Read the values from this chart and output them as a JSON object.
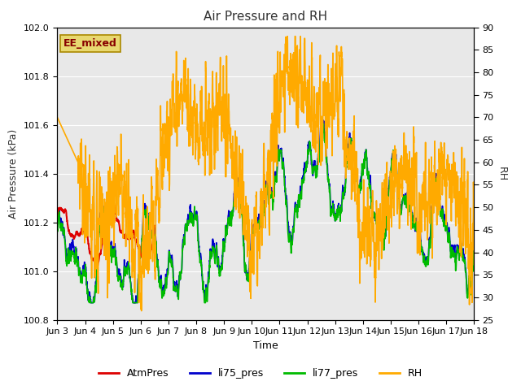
{
  "title": "Air Pressure and RH",
  "xlabel": "Time",
  "ylabel_left": "Air Pressure (kPa)",
  "ylabel_right": "RH",
  "annotation": "EE_mixed",
  "ylim_left": [
    100.8,
    102.0
  ],
  "ylim_right": [
    25,
    90
  ],
  "yticks_left": [
    100.8,
    101.0,
    101.2,
    101.4,
    101.6,
    101.8,
    102.0
  ],
  "yticks_right": [
    25,
    30,
    35,
    40,
    45,
    50,
    55,
    60,
    65,
    70,
    75,
    80,
    85,
    90
  ],
  "xtick_labels": [
    "Jun 3",
    "Jun 4",
    "Jun 5",
    "Jun 6",
    "Jun 7",
    "Jun 8",
    "Jun 9",
    "Jun 10",
    "Jun 11",
    "Jun 12",
    "Jun 13",
    "Jun 14",
    "Jun 15",
    "Jun 16",
    "Jun 17",
    "Jun 18"
  ],
  "colors": {
    "AtmPres": "#dd0000",
    "li75_pres": "#0000cc",
    "li77_pres": "#00bb00",
    "RH": "#ffaa00"
  },
  "legend_labels": [
    "AtmPres",
    "li75_pres",
    "li77_pres",
    "RH"
  ],
  "plot_bg_color": "#e8e8e8",
  "plot_bg_light": "#f0f0f0",
  "annotation_box_color": "#e8d870",
  "annotation_text_color": "#880000",
  "annotation_edge_color": "#aa8800",
  "title_color": "#333333",
  "grid_color": "#ffffff",
  "linewidth": 1.2
}
